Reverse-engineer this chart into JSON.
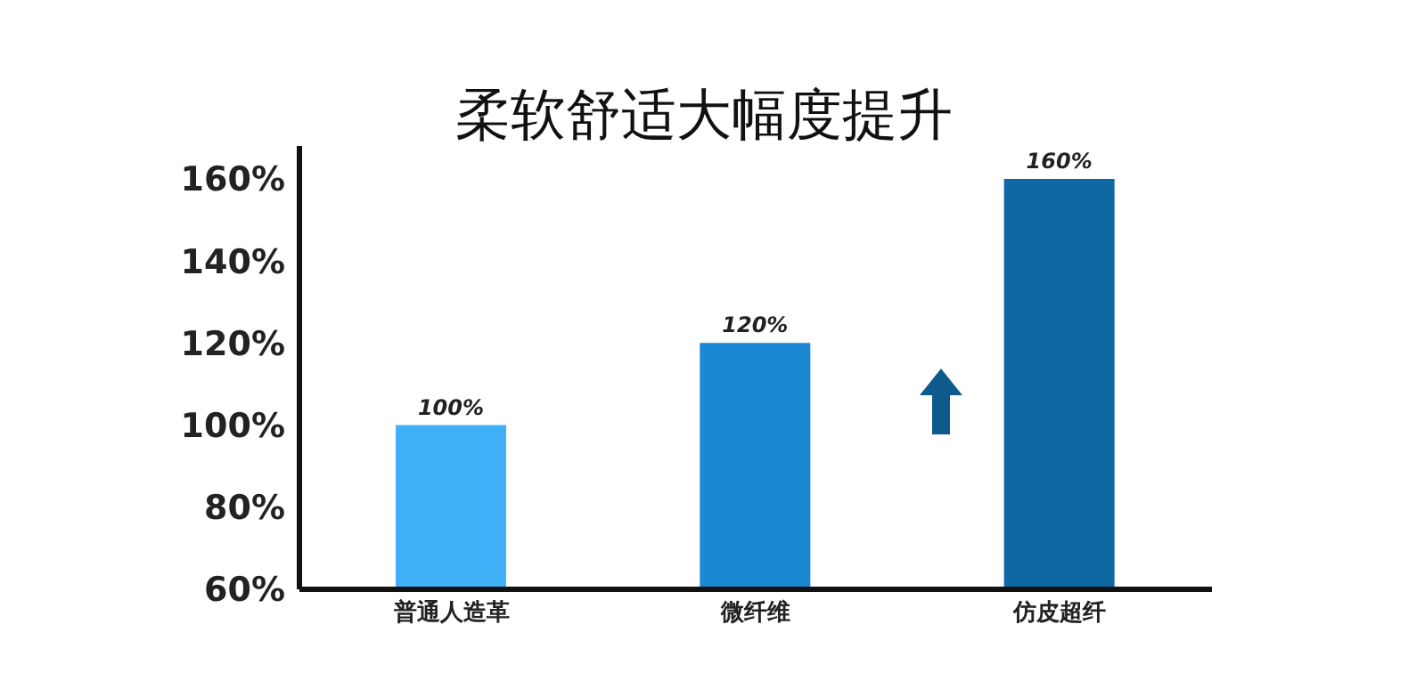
{
  "chart_data": {
    "type": "bar",
    "title": "柔软舒适大幅度提升",
    "categories": [
      "普通人造革",
      "微纤维",
      "仿皮超纤"
    ],
    "values": [
      100,
      120,
      160
    ],
    "colors": [
      "#40b0f8",
      "#1a88d2",
      "#0e68a4"
    ],
    "value_labels": [
      "100%",
      "120%",
      "160%"
    ],
    "ylim": [
      60,
      168
    ],
    "yticks": [
      {
        "value": 60,
        "label": "60%"
      },
      {
        "value": 80,
        "label": "80%"
      },
      {
        "value": 100,
        "label": "100%"
      },
      {
        "value": 120,
        "label": "120%"
      },
      {
        "value": 140,
        "label": "140%"
      },
      {
        "value": 160,
        "label": "160%"
      }
    ]
  }
}
